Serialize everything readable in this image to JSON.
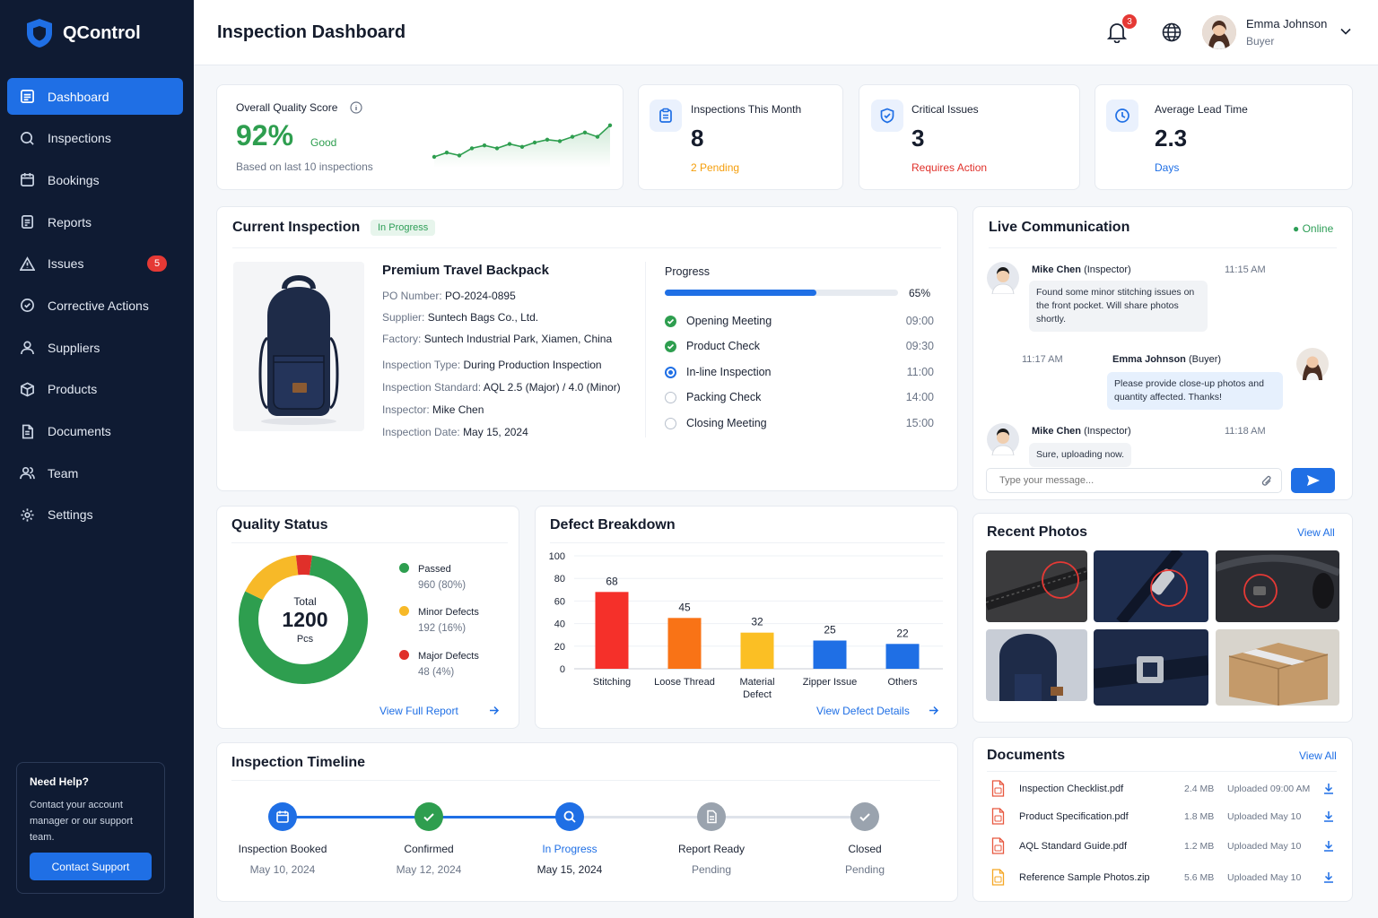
{
  "app": {
    "name": "QControl"
  },
  "nav": {
    "items": [
      {
        "label": "Dashboard",
        "icon": "dashboard-icon"
      },
      {
        "label": "Inspections",
        "icon": "search-icon"
      },
      {
        "label": "Bookings",
        "icon": "calendar-icon"
      },
      {
        "label": "Reports",
        "icon": "report-icon"
      },
      {
        "label": "Issues",
        "icon": "warning-icon",
        "badge": "5"
      },
      {
        "label": "Corrective Actions",
        "icon": "check-circle-icon"
      },
      {
        "label": "Suppliers",
        "icon": "user-icon"
      },
      {
        "label": "Products",
        "icon": "box-icon"
      },
      {
        "label": "Documents",
        "icon": "document-icon"
      },
      {
        "label": "Team",
        "icon": "team-icon"
      },
      {
        "label": "Settings",
        "icon": "gear-icon"
      }
    ]
  },
  "help": {
    "title": "Need Help?",
    "text": "Contact your account manager or our support team.",
    "button": "Contact Support"
  },
  "header": {
    "title": "Inspection Dashboard",
    "notifications": "3",
    "user": {
      "name": "Emma Johnson",
      "role": "Buyer"
    }
  },
  "kpi": {
    "quality": {
      "label": "Overall Quality Score",
      "value": "92%",
      "status": "Good",
      "sub": "Based on last 10 inspections",
      "trend": [
        50,
        53,
        51,
        56,
        58,
        56,
        59,
        57,
        60,
        62,
        61,
        64,
        67,
        64,
        72
      ]
    },
    "inspections": {
      "label": "Inspections This Month",
      "value": "8",
      "sub": "2 Pending"
    },
    "critical": {
      "label": "Critical Issues",
      "value": "3",
      "sub": "Requires Action"
    },
    "lead": {
      "label": "Average Lead Time",
      "value": "2.3",
      "sub": "Days"
    }
  },
  "current": {
    "title": "Current Inspection",
    "status": "In Progress",
    "product": "Premium Travel Backpack",
    "details": [
      {
        "k": "PO Number:",
        "v": "PO-2024-0895"
      },
      {
        "k": "Supplier:",
        "v": "Suntech Bags Co., Ltd."
      },
      {
        "k": "Factory:",
        "v": "Suntech Industrial Park, Xiamen, China"
      },
      {
        "k": "Inspection Type:",
        "v": "During Production Inspection"
      },
      {
        "k": "Inspection Standard:",
        "v": "AQL 2.5 (Major) / 4.0 (Minor)"
      },
      {
        "k": "Inspector:",
        "v": "Mike Chen"
      },
      {
        "k": "Inspection Date:",
        "v": "May 15, 2024"
      }
    ],
    "progress_label": "Progress",
    "progress_value": 65,
    "progress_text": "65%",
    "steps": [
      {
        "label": "Opening Meeting",
        "time": "09:00",
        "state": "done"
      },
      {
        "label": "Product Check",
        "time": "09:30",
        "state": "done"
      },
      {
        "label": "In-line Inspection",
        "time": "11:00",
        "state": "active"
      },
      {
        "label": "Packing Check",
        "time": "14:00",
        "state": "todo"
      },
      {
        "label": "Closing Meeting",
        "time": "15:00",
        "state": "todo"
      }
    ]
  },
  "chat": {
    "title": "Live Communication",
    "status": "Online",
    "messages": [
      {
        "name": "Mike Chen",
        "role": "(Inspector)",
        "time": "11:15 AM",
        "text": "Found some minor stitching issues on the front pocket. Will share photos shortly."
      },
      {
        "name": "Emma Johnson",
        "role": "(Buyer)",
        "time": "11:17 AM",
        "text": "Please provide close-up photos and quantity affected. Thanks!"
      },
      {
        "name": "Mike Chen",
        "role": "(Inspector)",
        "time": "11:18 AM",
        "text": "Sure, uploading now."
      }
    ],
    "placeholder": "Type your message..."
  },
  "quality_status": {
    "title": "Quality Status",
    "total_label": "Total",
    "total": "1200",
    "unit": "Pcs",
    "items": [
      {
        "label": "Passed",
        "value": "960 (80%)",
        "pct": 80,
        "color": "#2e9e4f"
      },
      {
        "label": "Minor Defects",
        "value": "192 (16%)",
        "pct": 16,
        "color": "#f7b928"
      },
      {
        "label": "Major Defects",
        "value": "48 (4%)",
        "pct": 4,
        "color": "#e0302a"
      }
    ],
    "link": "View Full Report"
  },
  "defects": {
    "title": "Defect Breakdown",
    "link": "View Defect Details"
  },
  "chart_data": {
    "type": "bar",
    "categories": [
      "Stitching",
      "Loose Thread",
      "Material Defect",
      "Zipper Issue",
      "Others"
    ],
    "values": [
      68,
      45,
      32,
      25,
      22
    ],
    "colors": [
      "#f5302a",
      "#f97316",
      "#fbbf24",
      "#1f6fe5",
      "#1f6fe5"
    ],
    "yticks": [
      0,
      20,
      40,
      60,
      80,
      100
    ],
    "ylim": [
      0,
      100
    ],
    "grid": true
  },
  "photos": {
    "title": "Recent Photos",
    "link": "View All"
  },
  "timeline": {
    "title": "Inspection Timeline",
    "steps": [
      {
        "label": "Inspection Booked",
        "date": "May 10, 2024",
        "state": "done",
        "icon": "calendar-icon"
      },
      {
        "label": "Confirmed",
        "date": "May 12, 2024",
        "state": "done",
        "icon": "check-icon"
      },
      {
        "label": "In Progress",
        "date": "May 15, 2024",
        "state": "active",
        "icon": "search-icon"
      },
      {
        "label": "Report Ready",
        "date": "Pending",
        "state": "todo",
        "icon": "report-icon"
      },
      {
        "label": "Closed",
        "date": "Pending",
        "state": "todo",
        "icon": "check-icon"
      }
    ]
  },
  "documents": {
    "title": "Documents",
    "link": "View All",
    "items": [
      {
        "name": "Inspection Checklist.pdf",
        "size": "2.4 MB",
        "uploaded": "Uploaded 09:00 AM"
      },
      {
        "name": "Product Specification.pdf",
        "size": "1.8 MB",
        "uploaded": "Uploaded May 10"
      },
      {
        "name": "AQL Standard Guide.pdf",
        "size": "1.2 MB",
        "uploaded": "Uploaded May 10"
      },
      {
        "name": "Reference Sample Photos.zip",
        "size": "5.6 MB",
        "uploaded": "Uploaded May 10"
      }
    ]
  }
}
